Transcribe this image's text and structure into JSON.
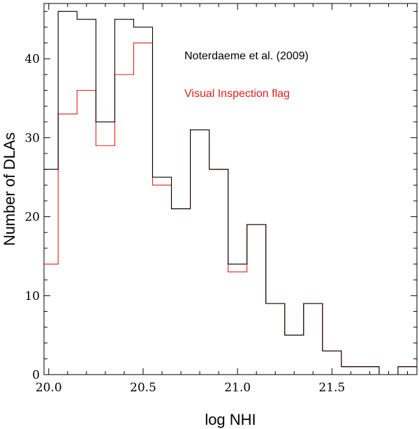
{
  "chart_data": {
    "type": "histogram",
    "xlabel": "log NHI",
    "ylabel": "Number of DLAs",
    "xlim": [
      19.975,
      21.95
    ],
    "ylim": [
      0,
      47
    ],
    "xticks_major": [
      20.0,
      20.5,
      21.0,
      21.5
    ],
    "xtick_labels": [
      "20.0",
      "20.5",
      "21.0",
      "21.5"
    ],
    "yticks_major": [
      0,
      10,
      20,
      30,
      40
    ],
    "ytick_labels": [
      "0",
      "10",
      "20",
      "30",
      "40"
    ],
    "bin_edges": [
      19.975,
      20.05,
      20.15,
      20.25,
      20.35,
      20.45,
      20.55,
      20.65,
      20.75,
      20.85,
      20.95,
      21.05,
      21.15,
      21.25,
      21.35,
      21.45,
      21.55,
      21.65,
      21.75,
      21.85,
      21.95
    ],
    "series": [
      {
        "name": "Noterdaeme et al. (2009)",
        "color": "#000000",
        "values": [
          26,
          46,
          45,
          32,
          45,
          44,
          25,
          21,
          31,
          26,
          14,
          19,
          9,
          5,
          9,
          3,
          1,
          1,
          0,
          1
        ]
      },
      {
        "name": "Visual Inspection flag",
        "color": "#e0201b",
        "values": [
          14,
          33,
          36,
          29,
          38,
          42,
          24,
          21,
          31,
          26,
          13,
          19,
          9,
          5,
          9,
          3,
          1,
          1,
          0,
          1
        ]
      }
    ],
    "legend": [
      {
        "label": "Noterdaeme et al. (2009)",
        "color": "#000000"
      },
      {
        "label": "Visual Inspection flag",
        "color": "#e0201b"
      }
    ]
  }
}
